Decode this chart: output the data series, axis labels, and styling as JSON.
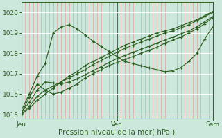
{
  "bg_color": "#cce8dc",
  "plot_bg_color": "#cce8dc",
  "grid_major_y_color": "#ffffff",
  "grid_minor_x_color": "#e8a0a0",
  "grid_major_x_color": "#3d7a3d",
  "line_color": "#2d6020",
  "tick_color": "#2d6020",
  "xlabel_color": "#2d6020",
  "ylim": [
    1014.8,
    1020.5
  ],
  "yticks": [
    1015,
    1016,
    1017,
    1018,
    1019,
    1020
  ],
  "xlim": [
    0,
    96
  ],
  "xlabel": "Pression niveau de la mer( hPa )",
  "day_labels": [
    "Jeu",
    "Ven",
    "Sam"
  ],
  "day_positions": [
    0,
    48,
    96
  ],
  "series": [
    {
      "x": [
        0,
        4,
        8,
        12,
        16,
        20,
        24,
        28,
        32,
        36,
        40,
        44,
        48,
        52,
        56,
        60,
        64,
        68,
        72,
        76,
        80,
        84,
        88,
        92,
        96
      ],
      "y": [
        1015.0,
        1015.3,
        1015.7,
        1016.0,
        1016.3,
        1016.6,
        1016.9,
        1017.1,
        1017.4,
        1017.6,
        1017.8,
        1018.0,
        1018.2,
        1018.4,
        1018.55,
        1018.7,
        1018.85,
        1019.0,
        1019.1,
        1019.2,
        1019.35,
        1019.5,
        1019.65,
        1019.85,
        1020.05
      ]
    },
    {
      "x": [
        0,
        4,
        8,
        12,
        16,
        20,
        24,
        28,
        32,
        36,
        40,
        44,
        48,
        52,
        56,
        60,
        64,
        68,
        72,
        76,
        80,
        84,
        88,
        92,
        96
      ],
      "y": [
        1015.0,
        1015.4,
        1015.9,
        1016.2,
        1016.4,
        1016.6,
        1016.8,
        1017.0,
        1017.2,
        1017.45,
        1017.65,
        1017.85,
        1018.05,
        1018.25,
        1018.4,
        1018.55,
        1018.7,
        1018.85,
        1019.0,
        1019.1,
        1019.25,
        1019.4,
        1019.6,
        1019.8,
        1020.0
      ]
    },
    {
      "x": [
        0,
        4,
        8,
        12,
        16,
        20,
        24,
        28,
        32,
        36,
        40,
        44,
        48,
        52,
        56,
        60,
        64,
        68,
        72,
        76,
        80,
        84,
        88,
        92,
        96
      ],
      "y": [
        1015.1,
        1015.6,
        1016.2,
        1016.6,
        1016.55,
        1016.5,
        1016.6,
        1016.75,
        1016.95,
        1017.15,
        1017.35,
        1017.55,
        1017.75,
        1017.9,
        1018.05,
        1018.2,
        1018.35,
        1018.5,
        1018.65,
        1018.8,
        1018.95,
        1019.1,
        1019.3,
        1019.55,
        1019.8
      ]
    },
    {
      "x": [
        0,
        4,
        8,
        12,
        16,
        20,
        24,
        28,
        32,
        36,
        40,
        44,
        48,
        52,
        56,
        60,
        64,
        68,
        72,
        76,
        80,
        84,
        88,
        92,
        96
      ],
      "y": [
        1015.2,
        1016.0,
        1016.9,
        1017.5,
        1019.0,
        1019.3,
        1019.4,
        1019.2,
        1018.9,
        1018.6,
        1018.35,
        1018.1,
        1017.85,
        1017.6,
        1017.5,
        1017.4,
        1017.3,
        1017.2,
        1017.1,
        1017.15,
        1017.3,
        1017.6,
        1018.0,
        1018.7,
        1019.3
      ]
    },
    {
      "x": [
        0,
        4,
        8,
        12,
        16,
        20,
        24,
        28,
        32,
        36,
        40,
        44,
        48,
        52,
        56,
        60,
        64,
        68,
        72,
        76,
        80,
        84,
        88,
        92,
        96
      ],
      "y": [
        1015.05,
        1015.85,
        1016.5,
        1016.2,
        1016.0,
        1016.1,
        1016.3,
        1016.5,
        1016.8,
        1017.0,
        1017.2,
        1017.4,
        1017.55,
        1017.7,
        1017.85,
        1018.0,
        1018.15,
        1018.3,
        1018.5,
        1018.65,
        1018.8,
        1019.0,
        1019.2,
        1019.45,
        1019.75
      ]
    }
  ]
}
